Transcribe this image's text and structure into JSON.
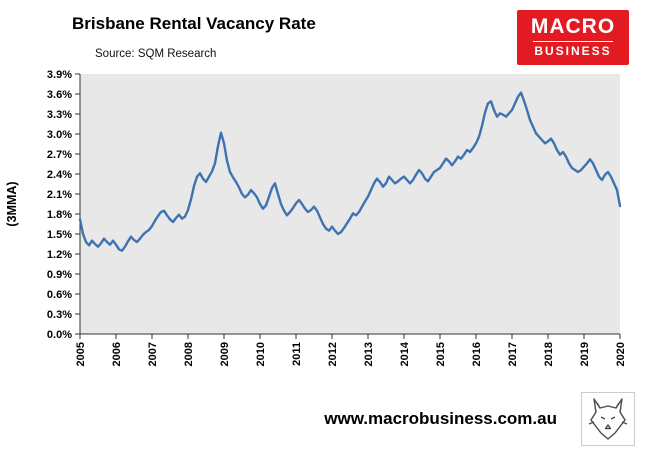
{
  "header": {
    "title": "Brisbane Rental Vacancy Rate",
    "source": "Source: SQM Research",
    "logo": {
      "line1": "MACRO",
      "line2": "BUSINESS",
      "bg_color": "#E21B23"
    }
  },
  "footer": {
    "website": "www.macrobusiness.com.au",
    "logo_icon": "wolf-sketch-icon"
  },
  "chart_data": {
    "type": "line",
    "title": "Brisbane Rental Vacancy Rate",
    "subtitle": "Source: SQM Research",
    "xlabel": "",
    "ylabel": "(3MMA)",
    "ylim": [
      0,
      3.9
    ],
    "y_tick_step": 0.3,
    "grid": false,
    "legend": "none",
    "plot_bg": "#E8E8E8",
    "line_color": "#3E73B1",
    "x_unit": "monthly",
    "x_range": [
      "2005-01",
      "2020-01"
    ],
    "x_tick_labels": [
      "2005",
      "2006",
      "2007",
      "2008",
      "2009",
      "2010",
      "2011",
      "2012",
      "2013",
      "2014",
      "2015",
      "2016",
      "2017",
      "2018",
      "2019",
      "2020"
    ],
    "y_tick_labels": [
      "0.0%",
      "0.3%",
      "0.6%",
      "0.9%",
      "1.2%",
      "1.5%",
      "1.8%",
      "2.1%",
      "2.4%",
      "2.7%",
      "3.0%",
      "3.3%",
      "3.6%",
      "3.9%"
    ],
    "series": [
      {
        "name": "Brisbane rental vacancy rate (3MMA, %)",
        "values": [
          1.72,
          1.5,
          1.38,
          1.33,
          1.4,
          1.35,
          1.31,
          1.36,
          1.43,
          1.38,
          1.34,
          1.4,
          1.34,
          1.27,
          1.25,
          1.31,
          1.39,
          1.46,
          1.41,
          1.38,
          1.43,
          1.49,
          1.53,
          1.56,
          1.62,
          1.7,
          1.77,
          1.83,
          1.85,
          1.78,
          1.72,
          1.68,
          1.74,
          1.79,
          1.73,
          1.76,
          1.86,
          2.02,
          2.22,
          2.36,
          2.41,
          2.33,
          2.28,
          2.36,
          2.44,
          2.56,
          2.82,
          3.02,
          2.86,
          2.6,
          2.43,
          2.35,
          2.28,
          2.2,
          2.1,
          2.05,
          2.09,
          2.16,
          2.11,
          2.05,
          1.95,
          1.88,
          1.93,
          2.06,
          2.19,
          2.26,
          2.1,
          1.95,
          1.85,
          1.78,
          1.83,
          1.89,
          1.96,
          2.01,
          1.95,
          1.88,
          1.83,
          1.86,
          1.91,
          1.85,
          1.75,
          1.65,
          1.58,
          1.55,
          1.61,
          1.55,
          1.5,
          1.53,
          1.59,
          1.66,
          1.73,
          1.81,
          1.78,
          1.83,
          1.91,
          1.99,
          2.06,
          2.16,
          2.26,
          2.33,
          2.28,
          2.21,
          2.26,
          2.36,
          2.31,
          2.26,
          2.29,
          2.33,
          2.36,
          2.31,
          2.26,
          2.31,
          2.39,
          2.46,
          2.41,
          2.33,
          2.29,
          2.36,
          2.43,
          2.46,
          2.49,
          2.56,
          2.63,
          2.59,
          2.53,
          2.59,
          2.66,
          2.63,
          2.69,
          2.76,
          2.73,
          2.79,
          2.86,
          2.96,
          3.12,
          3.32,
          3.46,
          3.49,
          3.36,
          3.26,
          3.31,
          3.29,
          3.26,
          3.31,
          3.36,
          3.46,
          3.56,
          3.62,
          3.5,
          3.36,
          3.21,
          3.11,
          3.01,
          2.96,
          2.91,
          2.86,
          2.89,
          2.93,
          2.86,
          2.76,
          2.69,
          2.73,
          2.66,
          2.56,
          2.49,
          2.46,
          2.43,
          2.46,
          2.51,
          2.56,
          2.62,
          2.56,
          2.46,
          2.36,
          2.31,
          2.39,
          2.43,
          2.36,
          2.26,
          2.16,
          1.92
        ]
      }
    ]
  }
}
